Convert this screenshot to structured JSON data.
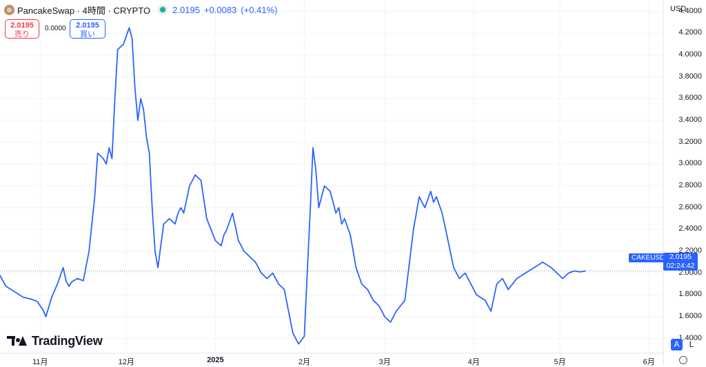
{
  "legend": {
    "symbol_title": "PancakeSwap · 4時間 · CRYPTO",
    "last_price": "2.0195",
    "change": "+0.0083",
    "change_pct": "(+0.41%)",
    "icon": "pancakeswap-logo-icon"
  },
  "trade": {
    "sell_price": "2.0195",
    "sell_label": "売り",
    "spread": "0.0000",
    "buy_price": "2.0195",
    "buy_label": "買い"
  },
  "scale": {
    "currency": "USD",
    "price_tag": "2.0195",
    "countdown": "02:24:42",
    "symbol_tag": "CAKEUSD",
    "auto_label": "A",
    "log_label": "L"
  },
  "branding": {
    "name": "TradingView"
  },
  "colors": {
    "line": "#2962ff",
    "buy": "#2962ff",
    "sell": "#f23645",
    "grid": "#f0f3fa",
    "status": "#22ab94"
  },
  "chart_data": {
    "type": "line",
    "title": "",
    "xlabel": "",
    "ylabel": "",
    "ylim": [
      1.265,
      4.505
    ],
    "y_ticks": [
      "1.4000",
      "1.6000",
      "1.8000",
      "2.0000",
      "2.2000",
      "2.4000",
      "2.6000",
      "2.8000",
      "3.0000",
      "3.2000",
      "3.4000",
      "3.6000",
      "3.8000",
      "4.0000",
      "4.2000",
      "4.4000"
    ],
    "y_tick_values": [
      1.4,
      1.6,
      1.8,
      2.0,
      2.2,
      2.4,
      2.6,
      2.8,
      3.0,
      3.2,
      3.4,
      3.6,
      3.8,
      4.0,
      4.2,
      4.4
    ],
    "x_ticks": [
      {
        "label": "11月",
        "date": "2024-11-01"
      },
      {
        "label": "12月",
        "date": "2024-12-01"
      },
      {
        "label": "2025",
        "date": "2025-01-01",
        "bold": true
      },
      {
        "label": "2月",
        "date": "2025-02-01"
      },
      {
        "label": "3月",
        "date": "2025-03-01"
      },
      {
        "label": "4月",
        "date": "2025-04-01"
      },
      {
        "label": "5月",
        "date": "2025-05-01"
      },
      {
        "label": "6月",
        "date": "2025-06-01"
      }
    ],
    "x_range": [
      "2024-10-18",
      "2025-06-06"
    ],
    "grid": true,
    "last_value": 2.0195,
    "series": [
      {
        "name": "CAKEUSD",
        "x": [
          "2024-10-18",
          "2024-10-20",
          "2024-10-23",
          "2024-10-26",
          "2024-10-29",
          "2024-10-31",
          "2024-11-02",
          "2024-11-03",
          "2024-11-05",
          "2024-11-07",
          "2024-11-09",
          "2024-11-10",
          "2024-11-11",
          "2024-11-12",
          "2024-11-14",
          "2024-11-16",
          "2024-11-18",
          "2024-11-20",
          "2024-11-21",
          "2024-11-23",
          "2024-11-24",
          "2024-11-25",
          "2024-11-26",
          "2024-11-27",
          "2024-11-28",
          "2024-11-30",
          "2024-12-02",
          "2024-12-03",
          "2024-12-04",
          "2024-12-05",
          "2024-12-06",
          "2024-12-07",
          "2024-12-08",
          "2024-12-09",
          "2024-12-10",
          "2024-12-11",
          "2024-12-12",
          "2024-12-14",
          "2024-12-16",
          "2024-12-18",
          "2024-12-19",
          "2024-12-20",
          "2024-12-21",
          "2024-12-23",
          "2024-12-25",
          "2024-12-27",
          "2024-12-29",
          "2025-01-01",
          "2025-01-03",
          "2025-01-04",
          "2025-01-05",
          "2025-01-07",
          "2025-01-09",
          "2025-01-11",
          "2025-01-13",
          "2025-01-15",
          "2025-01-17",
          "2025-01-19",
          "2025-01-21",
          "2025-01-23",
          "2025-01-25",
          "2025-01-28",
          "2025-01-30",
          "2025-02-01",
          "2025-02-02",
          "2025-02-03",
          "2025-02-04",
          "2025-02-05",
          "2025-02-06",
          "2025-02-08",
          "2025-02-10",
          "2025-02-12",
          "2025-02-13",
          "2025-02-14",
          "2025-02-15",
          "2025-02-17",
          "2025-02-19",
          "2025-02-21",
          "2025-02-23",
          "2025-02-25",
          "2025-02-27",
          "2025-03-01",
          "2025-03-03",
          "2025-03-05",
          "2025-03-08",
          "2025-03-11",
          "2025-03-13",
          "2025-03-15",
          "2025-03-17",
          "2025-03-18",
          "2025-03-19",
          "2025-03-21",
          "2025-03-23",
          "2025-03-25",
          "2025-03-27",
          "2025-03-29",
          "2025-03-31",
          "2025-04-02",
          "2025-04-05",
          "2025-04-07",
          "2025-04-09",
          "2025-04-11",
          "2025-04-13",
          "2025-04-16",
          "2025-04-19",
          "2025-04-22",
          "2025-04-25",
          "2025-04-28",
          "2025-04-30",
          "2025-05-02",
          "2025-05-04",
          "2025-05-06",
          "2025-05-08",
          "2025-05-10"
        ],
        "y": [
          1.98,
          1.88,
          1.83,
          1.78,
          1.76,
          1.74,
          1.66,
          1.6,
          1.78,
          1.9,
          2.05,
          1.93,
          1.88,
          1.92,
          1.95,
          1.93,
          2.2,
          2.7,
          3.1,
          3.05,
          3.0,
          3.15,
          3.05,
          3.6,
          4.05,
          4.1,
          4.25,
          4.15,
          3.7,
          3.4,
          3.6,
          3.5,
          3.25,
          3.1,
          2.6,
          2.2,
          2.05,
          2.45,
          2.5,
          2.45,
          2.55,
          2.6,
          2.55,
          2.8,
          2.9,
          2.85,
          2.5,
          2.3,
          2.25,
          2.35,
          2.4,
          2.55,
          2.3,
          2.2,
          2.15,
          2.1,
          2.0,
          1.95,
          2.0,
          1.9,
          1.85,
          1.45,
          1.35,
          1.42,
          2.0,
          2.55,
          3.15,
          2.95,
          2.6,
          2.8,
          2.75,
          2.55,
          2.6,
          2.45,
          2.5,
          2.35,
          2.05,
          1.9,
          1.85,
          1.75,
          1.7,
          1.6,
          1.55,
          1.65,
          1.75,
          2.4,
          2.7,
          2.6,
          2.75,
          2.65,
          2.7,
          2.55,
          2.3,
          2.05,
          1.95,
          2.0,
          1.9,
          1.8,
          1.75,
          1.65,
          1.9,
          1.95,
          1.85,
          1.95,
          2.0,
          2.05,
          2.1,
          2.05,
          2.0,
          1.95,
          2.0,
          2.02,
          2.0112,
          2.0195
        ]
      }
    ]
  }
}
